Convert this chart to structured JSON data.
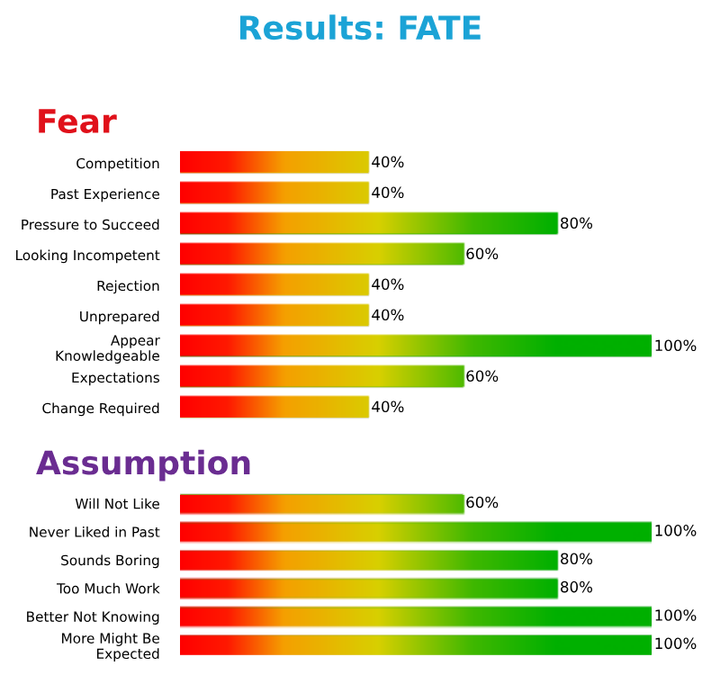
{
  "chart_data": [
    {
      "type": "other",
      "title": "Results: FATE"
    },
    {
      "type": "bar",
      "orientation": "horizontal",
      "title": "Fear",
      "categories": [
        "Competition",
        "Past Experience",
        "Pressure to Succeed",
        "Looking Incompetent",
        "Rejection",
        "Unprepared",
        "Appear Knowledgeable",
        "Expectations",
        "Change Required"
      ],
      "values": [
        40,
        40,
        80,
        60,
        40,
        40,
        100,
        60,
        40
      ],
      "value_labels": [
        "40%",
        "40%",
        "80%",
        "60%",
        "40%",
        "40%",
        "100%",
        "60%",
        "40%"
      ]
    },
    {
      "type": "bar",
      "orientation": "horizontal",
      "title": "Assumption",
      "categories": [
        "Will Not Like",
        "Never Liked in Past",
        "Sounds Boring",
        "Too Much Work",
        "Better Not Knowing",
        "More Might Be Expected"
      ],
      "values": [
        60,
        100,
        80,
        80,
        100,
        100
      ],
      "value_labels": [
        "60%",
        "100%",
        "80%",
        "80%",
        "100%",
        "100%"
      ]
    }
  ]
}
